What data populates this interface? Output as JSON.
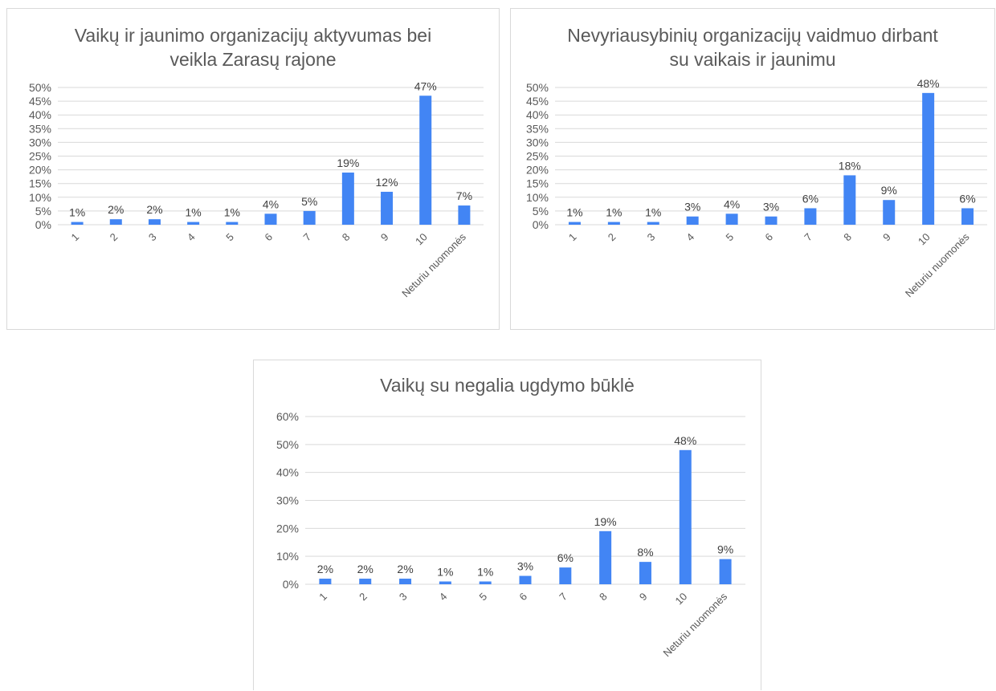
{
  "chart_data": [
    {
      "type": "bar",
      "title": "Vaikų ir jaunimo organizacijų aktyvumas bei veikla Zarasų rajone",
      "title_lines": [
        "Vaikų ir jaunimo organizacijų aktyvumas bei",
        "veikla Zarasų rajone"
      ],
      "categories": [
        "1",
        "2",
        "3",
        "4",
        "5",
        "6",
        "7",
        "8",
        "9",
        "10",
        "Neturiu nuomonės"
      ],
      "values": [
        0.01,
        0.02,
        0.02,
        0.01,
        0.01,
        0.04,
        0.05,
        0.19,
        0.12,
        0.47,
        0.07
      ],
      "value_labels": [
        "1%",
        "2%",
        "2%",
        "1%",
        "1%",
        "4%",
        "5%",
        "19%",
        "12%",
        "47%",
        "7%"
      ],
      "ylim": [
        0,
        0.5
      ],
      "y_ticks": [
        "0%",
        "5%",
        "10%",
        "15%",
        "20%",
        "25%",
        "30%",
        "35%",
        "40%",
        "45%",
        "50%"
      ],
      "grid": true,
      "bar_color": "#4285f4",
      "xlabel": "",
      "ylabel": ""
    },
    {
      "type": "bar",
      "title": "Nevyriausybinių organizacijų vaidmuo dirbant su vaikais ir jaunimu",
      "title_lines": [
        "Nevyriausybinių  organizacijų vaidmuo dirbant",
        "su vaikais ir jaunimu"
      ],
      "categories": [
        "1",
        "2",
        "3",
        "4",
        "5",
        "6",
        "7",
        "8",
        "9",
        "10",
        "Neturiu nuomonės"
      ],
      "values": [
        0.01,
        0.01,
        0.01,
        0.03,
        0.04,
        0.03,
        0.06,
        0.18,
        0.09,
        0.48,
        0.06
      ],
      "value_labels": [
        "1%",
        "1%",
        "1%",
        "3%",
        "4%",
        "3%",
        "6%",
        "18%",
        "9%",
        "48%",
        "6%"
      ],
      "ylim": [
        0,
        0.5
      ],
      "y_ticks": [
        "0%",
        "5%",
        "10%",
        "15%",
        "20%",
        "25%",
        "30%",
        "35%",
        "40%",
        "45%",
        "50%"
      ],
      "grid": true,
      "bar_color": "#4285f4",
      "xlabel": "",
      "ylabel": ""
    },
    {
      "type": "bar",
      "title": "Vaikų su negalia ugdymo būklė",
      "title_lines": [
        "Vaikų su negalia ugdymo būklė"
      ],
      "categories": [
        "1",
        "2",
        "3",
        "4",
        "5",
        "6",
        "7",
        "8",
        "9",
        "10",
        "Neturiu nuomonės"
      ],
      "values": [
        0.02,
        0.02,
        0.02,
        0.01,
        0.01,
        0.03,
        0.06,
        0.19,
        0.08,
        0.48,
        0.09
      ],
      "value_labels": [
        "2%",
        "2%",
        "2%",
        "1%",
        "1%",
        "3%",
        "6%",
        "19%",
        "8%",
        "48%",
        "9%"
      ],
      "ylim": [
        0,
        0.6
      ],
      "y_ticks": [
        "0%",
        "10%",
        "20%",
        "30%",
        "40%",
        "50%",
        "60%"
      ],
      "grid": true,
      "bar_color": "#4285f4",
      "xlabel": "",
      "ylabel": ""
    }
  ]
}
